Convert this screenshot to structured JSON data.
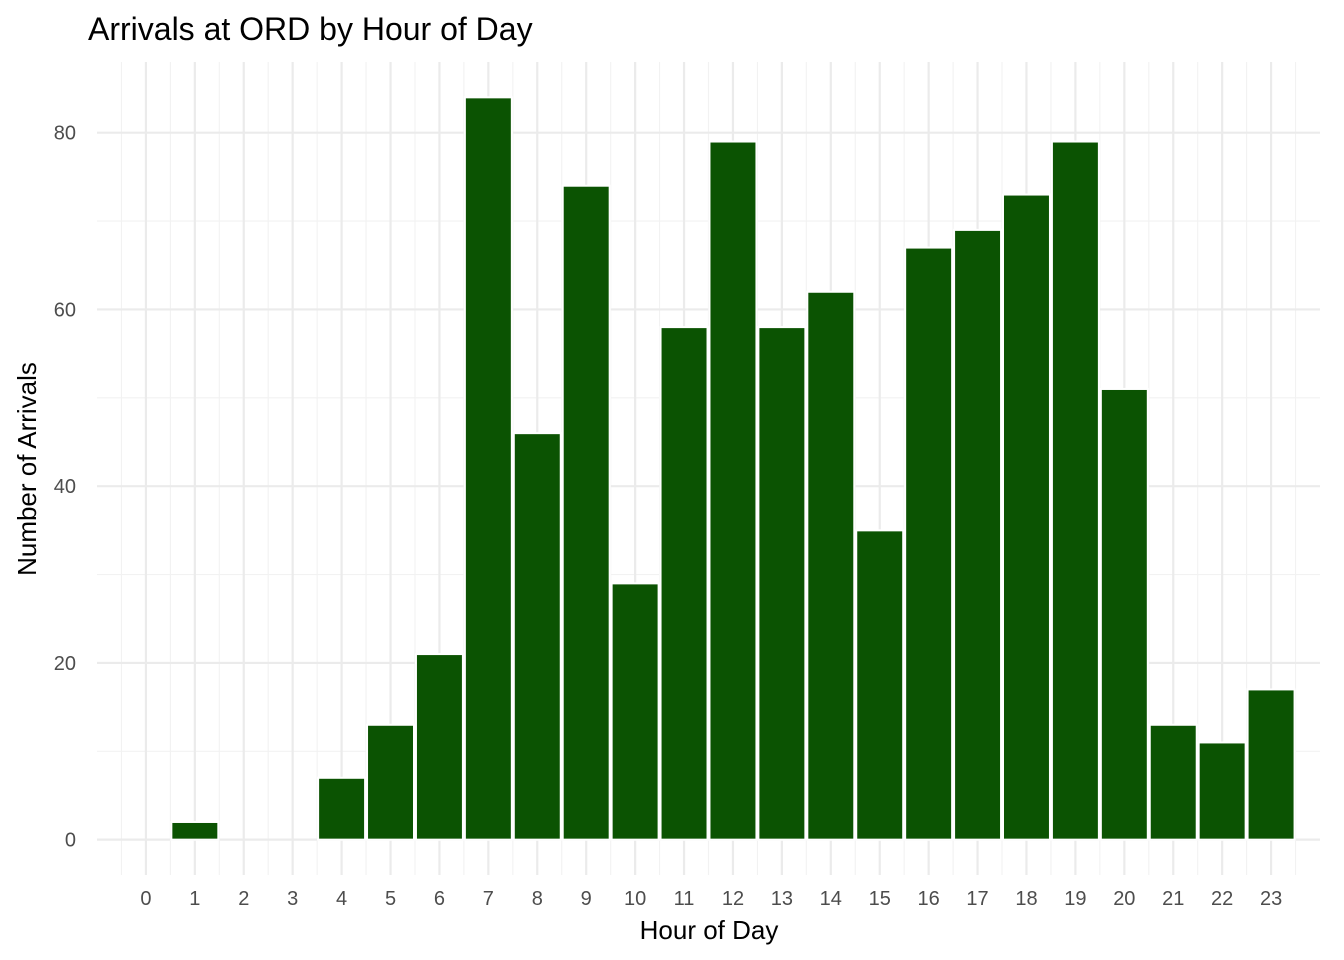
{
  "chart_data": {
    "type": "bar",
    "title": "Arrivals at ORD by Hour of Day",
    "xlabel": "Hour of Day",
    "ylabel": "Number of Arrivals",
    "categories": [
      "0",
      "1",
      "2",
      "3",
      "4",
      "5",
      "6",
      "7",
      "8",
      "9",
      "10",
      "11",
      "12",
      "13",
      "14",
      "15",
      "16",
      "17",
      "18",
      "19",
      "20",
      "21",
      "22",
      "23"
    ],
    "values": [
      0,
      2,
      0,
      0,
      7,
      13,
      21,
      84,
      46,
      74,
      29,
      58,
      79,
      58,
      62,
      35,
      67,
      69,
      73,
      79,
      51,
      13,
      11,
      17
    ],
    "yticks": [
      0,
      20,
      40,
      60,
      80
    ],
    "ylim": [
      -4,
      88
    ],
    "xlim": [
      -1,
      24
    ],
    "grid": true,
    "bar_color": "#0b5302",
    "bar_outline": "#ffffff"
  }
}
